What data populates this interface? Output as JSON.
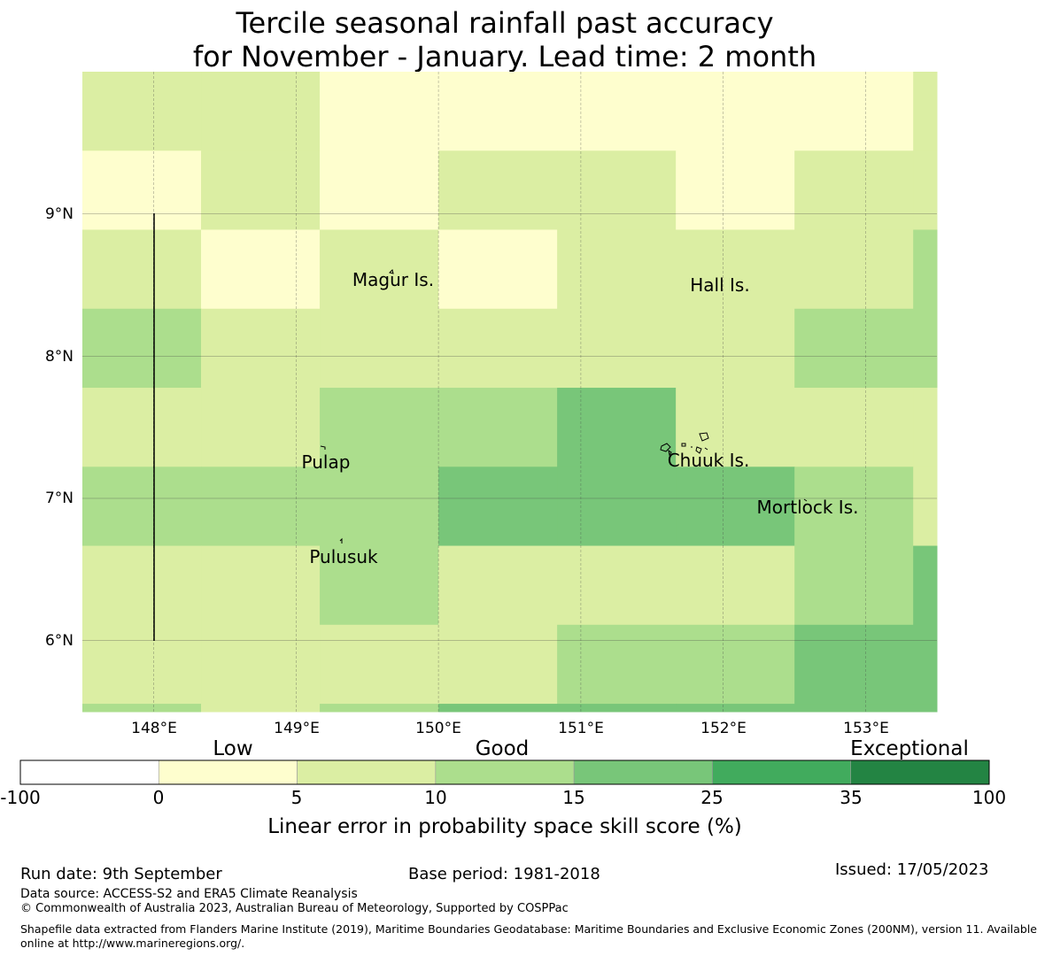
{
  "title_line1": "Tercile seasonal rainfall past accuracy",
  "title_line2": "for November - January. Lead time: 2 month",
  "map": {
    "lon_labels": [
      "148°E",
      "149°E",
      "150°E",
      "151°E",
      "152°E",
      "153°E"
    ],
    "lat_labels": [
      "9°N",
      "8°N",
      "7°N",
      "6°N"
    ],
    "lon_range": [
      147.5,
      153.5
    ],
    "lat_range": [
      5.5,
      10.0
    ],
    "grid": true,
    "islands": [
      {
        "name": "Magur Is.",
        "lon": 149.67,
        "lat": 8.55
      },
      {
        "name": "Hall Is.",
        "lon": 151.85,
        "lat": 8.5
      },
      {
        "name": "Pulap",
        "lon": 149.42,
        "lat": 7.25
      },
      {
        "name": "Chuuk Is.",
        "lon": 151.85,
        "lat": 7.3
      },
      {
        "name": "Mortlock Is.",
        "lon": 152.6,
        "lat": 6.95
      },
      {
        "name": "Pulusuk",
        "lon": 149.33,
        "lat": 6.6
      }
    ],
    "cell_rows": [
      [
        1,
        1,
        0,
        0,
        0,
        0,
        0,
        1
      ],
      [
        0,
        1,
        0,
        1,
        1,
        0,
        1,
        1
      ],
      [
        1,
        0,
        1,
        0,
        1,
        1,
        1,
        2
      ],
      [
        2,
        1,
        1,
        1,
        1,
        1,
        2,
        2
      ],
      [
        1,
        1,
        2,
        2,
        3,
        1,
        1,
        1
      ],
      [
        2,
        2,
        2,
        3,
        3,
        3,
        2,
        1
      ],
      [
        1,
        1,
        2,
        1,
        1,
        1,
        2,
        3
      ],
      [
        1,
        1,
        1,
        1,
        2,
        2,
        3,
        3
      ],
      [
        2,
        1,
        2,
        3,
        3,
        3,
        3,
        3
      ]
    ]
  },
  "legend": {
    "category_labels": [
      "Low",
      "Good",
      "Exceptional"
    ],
    "tick_labels": [
      "-100",
      "0",
      "5",
      "10",
      "15",
      "25",
      "35",
      "100"
    ],
    "colors": [
      "#ffffff",
      "#fefece",
      "#dbeea3",
      "#acde8d",
      "#78c679",
      "#41ab5d",
      "#238443"
    ],
    "title": "Linear error in probability space skill score (%)"
  },
  "footer": {
    "run_date": "Run date: 9th September",
    "base_period": "Base period: 1981-2018",
    "issued": "Issued: 17/05/2023",
    "data_source": "Data source: ACCESS-S2 and ERA5 Climate Reanalysis",
    "copyright": "© Commonwealth of Australia 2023, Australian Bureau of Meteorology, Supported by COSPPac",
    "shapefile": "Shapefile data extracted from Flanders Marine Institute (2019), Maritime Boundaries Geodatabase: Maritime Boundaries and Exclusive Economic Zones (200NM), version 11. Available",
    "shapefile_2": "online at http://www.marineregions.org/."
  }
}
